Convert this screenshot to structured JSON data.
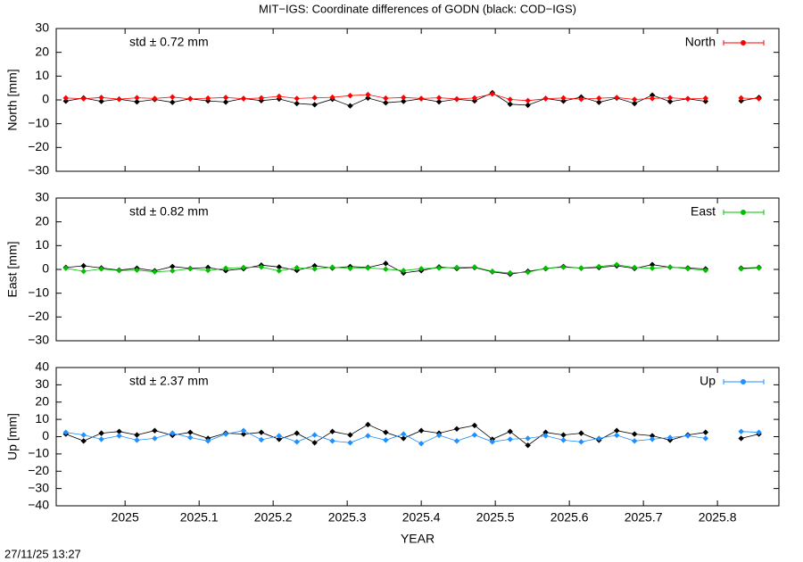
{
  "title": "MIT−IGS: Coordinate differences of GODN (black: COD−IGS)",
  "timestamp": "27/11/25 13:27",
  "chart_data": [
    {
      "type": "line",
      "ylabel": "North [mm]",
      "annotation": "std ± 0.72 mm",
      "annotation_color": "#ff0000",
      "xlim": [
        2024.907,
        2025.883
      ],
      "xticks": [
        2025,
        2025.1,
        2025.2,
        2025.3,
        2025.4,
        2025.5,
        2025.6,
        2025.7,
        2025.8
      ],
      "ylim": [
        -30,
        30
      ],
      "yticks": [
        {
          "value": -30,
          "label": "−30"
        },
        {
          "value": -20,
          "label": "−20"
        },
        {
          "value": -10,
          "label": "−10"
        },
        0,
        10,
        20,
        30
      ],
      "x": [
        2024.92,
        2024.944,
        2024.968,
        2024.992,
        2025.016,
        2025.04,
        2025.064,
        2025.088,
        2025.112,
        2025.136,
        2025.16,
        2025.184,
        2025.208,
        2025.232,
        2025.256,
        2025.28,
        2025.304,
        2025.328,
        2025.352,
        2025.376,
        2025.4,
        2025.424,
        2025.448,
        2025.472,
        2025.496,
        2025.52,
        2025.544,
        2025.568,
        2025.592,
        2025.616,
        2025.64,
        2025.664,
        2025.688,
        2025.712,
        2025.736,
        2025.76,
        2025.784,
        2025.808,
        2025.832,
        2025.856
      ],
      "series": [
        {
          "color": "#000000",
          "values": [
            -0.5,
            0.8,
            -0.6,
            0.3,
            -0.8,
            0.2,
            -1.0,
            0.5,
            -0.4,
            -0.9,
            0.6,
            -0.3,
            0.4,
            -1.5,
            -2.0,
            0.3,
            -2.5,
            0.8,
            -1.2,
            -0.6,
            0.5,
            -0.8,
            0.3,
            -0.4,
            3.0,
            -1.8,
            -2.2,
            0.6,
            -0.5,
            1.2,
            -1.0,
            0.8,
            -1.5,
            2.0,
            -0.7,
            0.5,
            -0.6,
            null,
            -0.4,
            1.0
          ]
        },
        {
          "name": "North",
          "color": "#ff0000",
          "values": [
            0.8,
            0.5,
            1.0,
            0.3,
            0.9,
            0.6,
            1.2,
            0.4,
            0.7,
            1.0,
            0.5,
            0.8,
            1.5,
            0.6,
            0.9,
            1.1,
            1.8,
            2.2,
            0.7,
            1.0,
            0.6,
            0.9,
            0.4,
            0.8,
            2.5,
            0.2,
            -0.3,
            0.5,
            0.8,
            0.3,
            0.7,
            1.0,
            0.2,
            0.6,
            0.9,
            0.4,
            0.7,
            null,
            0.8,
            0.5
          ]
        }
      ]
    },
    {
      "type": "line",
      "ylabel": "East [mm]",
      "annotation": "std ± 0.82 mm",
      "annotation_color": "#00c000",
      "xlim": [
        2024.907,
        2025.883
      ],
      "xticks": [
        2025,
        2025.1,
        2025.2,
        2025.3,
        2025.4,
        2025.5,
        2025.6,
        2025.7,
        2025.8
      ],
      "ylim": [
        -30,
        30
      ],
      "yticks": [
        {
          "value": -30,
          "label": "−30"
        },
        {
          "value": -20,
          "label": "−20"
        },
        {
          "value": -10,
          "label": "−10"
        },
        0,
        10,
        20,
        30
      ],
      "x": [
        2024.92,
        2024.944,
        2024.968,
        2024.992,
        2025.016,
        2025.04,
        2025.064,
        2025.088,
        2025.112,
        2025.136,
        2025.16,
        2025.184,
        2025.208,
        2025.232,
        2025.256,
        2025.28,
        2025.304,
        2025.328,
        2025.352,
        2025.376,
        2025.4,
        2025.424,
        2025.448,
        2025.472,
        2025.496,
        2025.52,
        2025.544,
        2025.568,
        2025.592,
        2025.616,
        2025.64,
        2025.664,
        2025.688,
        2025.712,
        2025.736,
        2025.76,
        2025.784,
        2025.808,
        2025.832,
        2025.856
      ],
      "series": [
        {
          "color": "#000000",
          "values": [
            0.8,
            1.5,
            0.6,
            -0.3,
            0.5,
            -0.6,
            1.2,
            0.4,
            0.8,
            -0.5,
            0.3,
            1.8,
            1.0,
            -0.4,
            1.5,
            0.6,
            1.2,
            0.8,
            2.5,
            -1.5,
            -0.5,
            1.0,
            0.4,
            0.8,
            -1.0,
            -2.0,
            -0.8,
            0.3,
            1.2,
            0.5,
            0.8,
            1.5,
            0.4,
            2.0,
            0.9,
            0.6,
            0.2,
            null,
            0.5,
            0.8
          ]
        },
        {
          "name": "East",
          "color": "#00c000",
          "values": [
            0.5,
            -0.8,
            0.2,
            -0.5,
            -0.3,
            -1.0,
            -0.6,
            0.3,
            -0.4,
            0.5,
            0.8,
            1.0,
            -0.6,
            0.7,
            0.2,
            0.9,
            0.4,
            0.6,
            0.1,
            -0.5,
            0.3,
            0.6,
            0.8,
            1.0,
            -0.8,
            -1.5,
            -1.2,
            0.5,
            0.9,
            0.6,
            1.2,
            2.0,
            0.8,
            0.5,
            1.0,
            0.3,
            -0.4,
            null,
            0.2,
            0.6
          ]
        }
      ]
    },
    {
      "type": "line",
      "ylabel": "Up [mm]",
      "annotation": "std ± 2.37 mm",
      "annotation_color": "#1e90ff",
      "xlabel": "YEAR",
      "xlim": [
        2024.907,
        2025.883
      ],
      "xticks": [
        2025,
        2025.1,
        2025.2,
        2025.3,
        2025.4,
        2025.5,
        2025.6,
        2025.7,
        2025.8
      ],
      "ylim": [
        -40,
        40
      ],
      "yticks": [
        {
          "value": -40,
          "label": "−40"
        },
        {
          "value": -30,
          "label": "−30"
        },
        {
          "value": -20,
          "label": "−20"
        },
        {
          "value": -10,
          "label": "−10"
        },
        0,
        10,
        20,
        30,
        40
      ],
      "x": [
        2024.92,
        2024.944,
        2024.968,
        2024.992,
        2025.016,
        2025.04,
        2025.064,
        2025.088,
        2025.112,
        2025.136,
        2025.16,
        2025.184,
        2025.208,
        2025.232,
        2025.256,
        2025.28,
        2025.304,
        2025.328,
        2025.352,
        2025.376,
        2025.4,
        2025.424,
        2025.448,
        2025.472,
        2025.496,
        2025.52,
        2025.544,
        2025.568,
        2025.592,
        2025.616,
        2025.64,
        2025.664,
        2025.688,
        2025.712,
        2025.736,
        2025.76,
        2025.784,
        2025.808,
        2025.832,
        2025.856
      ],
      "series": [
        {
          "color": "#000000",
          "values": [
            1.5,
            -2.5,
            2.0,
            3.0,
            1.0,
            3.5,
            0.8,
            2.5,
            -1.0,
            2.0,
            1.5,
            2.5,
            -1.5,
            2.0,
            -3.5,
            3.0,
            1.0,
            7.0,
            2.5,
            -1.0,
            3.5,
            2.0,
            4.5,
            6.5,
            -1.5,
            3.0,
            -5.0,
            2.5,
            1.0,
            2.0,
            -2.0,
            3.5,
            1.5,
            0.5,
            -2.0,
            1.0,
            2.5,
            null,
            -1.0,
            1.5
          ]
        },
        {
          "name": "Up",
          "color": "#1e90ff",
          "values": [
            2.5,
            1.0,
            -1.5,
            0.5,
            -2.0,
            -1.0,
            2.0,
            -0.5,
            -2.5,
            1.5,
            3.5,
            -1.8,
            0.5,
            -3.0,
            1.0,
            -2.5,
            -3.5,
            0.5,
            -2.0,
            1.5,
            -4.0,
            0.8,
            -2.5,
            1.0,
            -3.0,
            -1.5,
            -1.0,
            0.5,
            -2.0,
            -3.0,
            -1.0,
            0.8,
            -2.5,
            -1.5,
            -0.5,
            0.5,
            -1.0,
            null,
            3.0,
            2.5
          ]
        }
      ]
    }
  ]
}
